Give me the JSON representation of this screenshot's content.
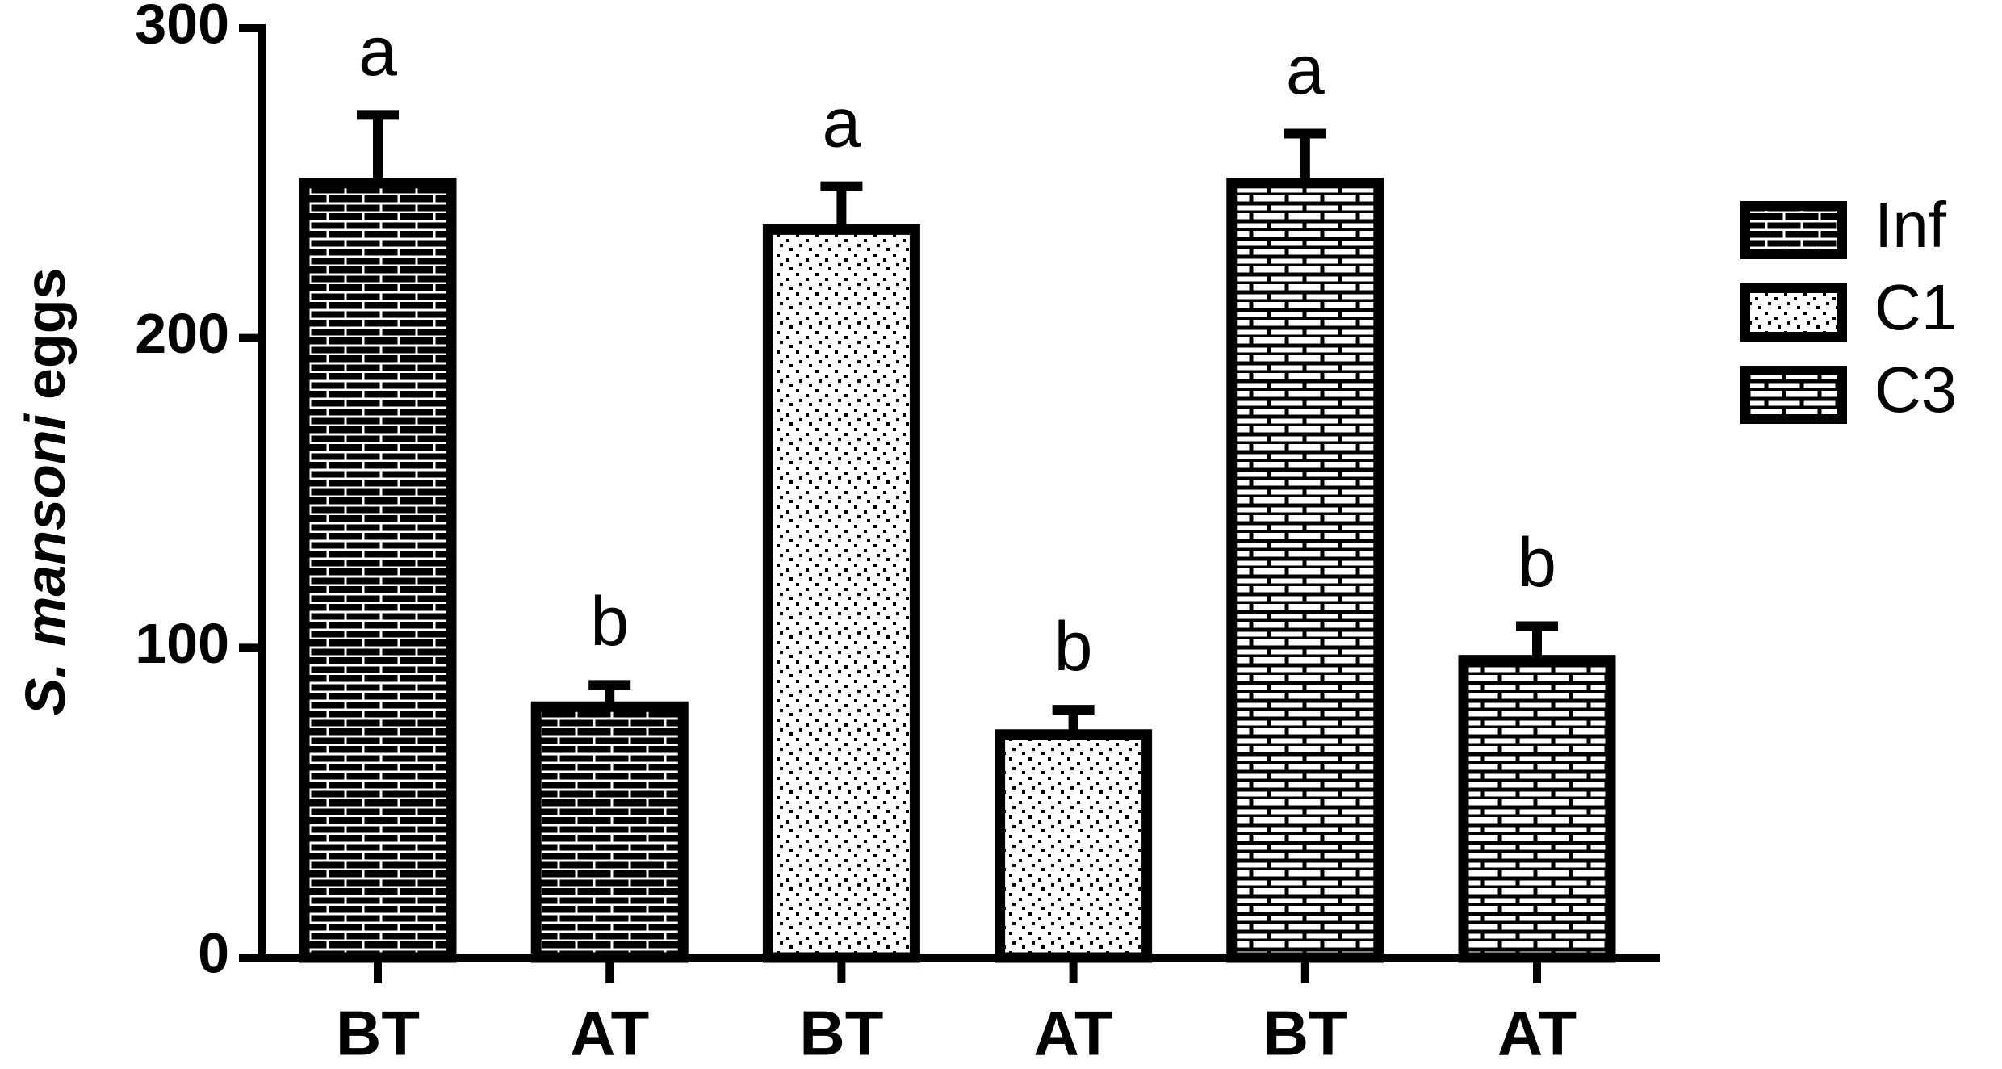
{
  "chart_data": {
    "type": "bar",
    "ylabel_italic": "S. mansoni",
    "ylabel": "eggs",
    "categories": [
      "BT",
      "AT",
      "BT",
      "AT",
      "BT",
      "AT"
    ],
    "series": [
      {
        "name": "Inf",
        "color": "#000000",
        "values": [
          250,
          81,
          null,
          null,
          null,
          null
        ],
        "errors": [
          22,
          7,
          null,
          null,
          null,
          null
        ]
      },
      {
        "name": "C1",
        "color": "#000000",
        "values": [
          null,
          null,
          235,
          72,
          null,
          null
        ],
        "errors": [
          null,
          null,
          14,
          8,
          null,
          null
        ]
      },
      {
        "name": "C3",
        "color": "#000000",
        "values": [
          null,
          null,
          null,
          null,
          250,
          96
        ],
        "errors": [
          null,
          null,
          null,
          null,
          16,
          11
        ]
      }
    ],
    "annotations": [
      "a",
      "b",
      "a",
      "b",
      "a",
      "b"
    ],
    "ylim": [
      0,
      300
    ],
    "yticks": [
      0,
      100,
      200,
      300
    ],
    "grid": false,
    "legend": "right"
  }
}
